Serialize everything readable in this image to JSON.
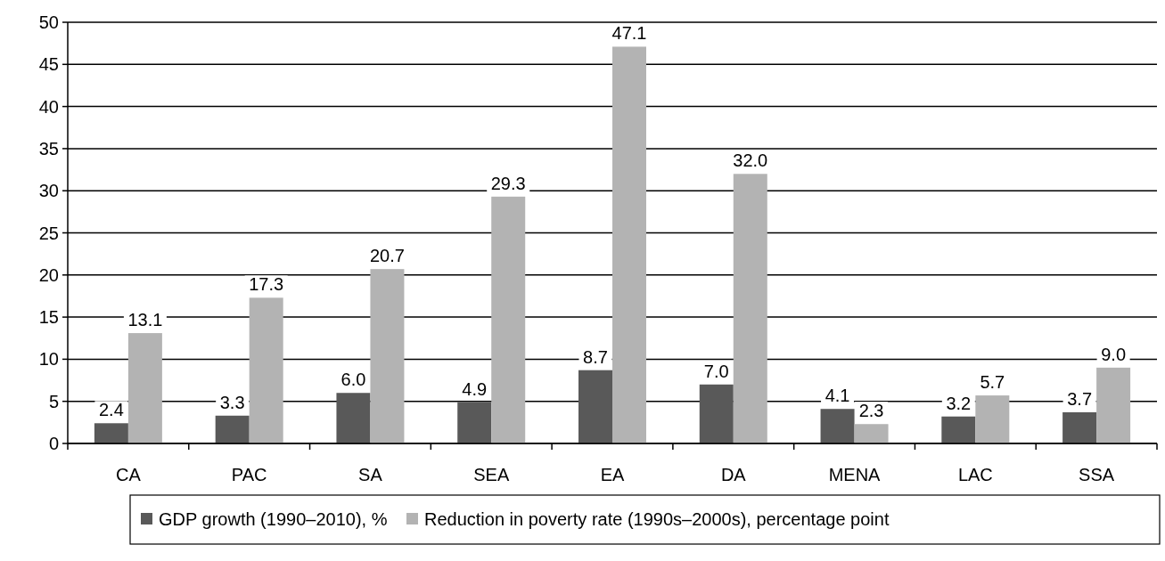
{
  "chart_data": {
    "type": "bar",
    "categories": [
      "CA",
      "PAC",
      "SA",
      "SEA",
      "EA",
      "DA",
      "MENA",
      "LAC",
      "SSA"
    ],
    "series": [
      {
        "name": "GDP growth (1990–2010), %",
        "color": "#595959",
        "values": [
          2.4,
          3.3,
          6.0,
          4.9,
          8.7,
          7.0,
          4.1,
          3.2,
          3.7
        ],
        "value_labels": [
          "2.4",
          "3.3",
          "6.0",
          "4.9",
          "8.7",
          "7.0",
          "4.1",
          "3.2",
          "3.7"
        ]
      },
      {
        "name": "Reduction in poverty rate (1990s–2000s), percentage point",
        "color": "#b3b3b3",
        "values": [
          13.1,
          17.3,
          20.7,
          29.3,
          47.1,
          32.0,
          2.3,
          5.7,
          9.0
        ],
        "value_labels": [
          "13.1",
          "17.3",
          "20.7",
          "29.3",
          "47.1",
          "32.0",
          "2.3",
          "5.7",
          "9.0"
        ]
      }
    ],
    "ylim": [
      0,
      50
    ],
    "yticks": [
      0,
      5,
      10,
      15,
      20,
      25,
      30,
      35,
      40,
      45,
      50
    ],
    "grid": "y",
    "legend": "bottom"
  }
}
